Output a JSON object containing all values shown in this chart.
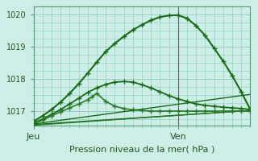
{
  "xlabel": "Pression niveau de la mer( hPa )",
  "bg_color": "#cceee6",
  "grid_color": "#88ccbb",
  "xlim": [
    0,
    48
  ],
  "ylim": [
    1016.55,
    1020.25
  ],
  "yticks": [
    1017,
    1018,
    1019,
    1020
  ],
  "xtick_positions": [
    0,
    32
  ],
  "xtick_labels": [
    "Jeu",
    "Ven"
  ],
  "vline_x": 32,
  "series": [
    {
      "x": [
        0,
        2,
        4,
        6,
        8,
        10,
        12,
        14,
        16,
        18,
        20,
        22,
        24,
        26,
        28,
        30,
        32,
        34,
        36,
        38,
        40,
        42,
        44,
        46,
        48
      ],
      "y": [
        1016.68,
        1016.85,
        1017.05,
        1017.28,
        1017.55,
        1017.85,
        1018.18,
        1018.52,
        1018.85,
        1019.1,
        1019.32,
        1019.52,
        1019.68,
        1019.82,
        1019.92,
        1019.97,
        1019.98,
        1019.88,
        1019.65,
        1019.35,
        1018.95,
        1018.55,
        1018.1,
        1017.6,
        1017.05
      ],
      "marker": "+",
      "lw": 1.5,
      "ms": 5,
      "color": "#1a6a1a"
    },
    {
      "x": [
        0,
        2,
        4,
        6,
        8,
        10,
        12,
        14,
        16,
        18,
        20,
        22,
        24,
        26,
        28,
        30,
        32,
        34,
        36,
        38,
        40,
        42,
        44,
        46,
        48
      ],
      "y": [
        1016.63,
        1016.75,
        1016.9,
        1017.05,
        1017.22,
        1017.4,
        1017.58,
        1017.72,
        1017.83,
        1017.9,
        1017.92,
        1017.9,
        1017.82,
        1017.72,
        1017.6,
        1017.48,
        1017.38,
        1017.3,
        1017.22,
        1017.18,
        1017.15,
        1017.12,
        1017.1,
        1017.08,
        1017.05
      ],
      "marker": "+",
      "lw": 1.3,
      "ms": 4,
      "color": "#1a6a1a"
    },
    {
      "x": [
        0,
        2,
        4,
        6,
        8,
        10,
        12,
        13,
        14,
        16,
        18,
        20,
        22,
        24,
        26,
        28,
        30,
        32,
        34,
        36,
        38,
        40,
        42,
        44,
        46,
        48
      ],
      "y": [
        1016.61,
        1016.72,
        1016.85,
        1016.98,
        1017.1,
        1017.22,
        1017.35,
        1017.45,
        1017.55,
        1017.3,
        1017.15,
        1017.08,
        1017.04,
        1017.02,
        1017.0,
        1017.0,
        1017.0,
        1017.0,
        1017.0,
        1017.0,
        1017.0,
        1017.0,
        1017.0,
        1017.0,
        1017.0,
        1017.0
      ],
      "marker": "+",
      "lw": 1.2,
      "ms": 4,
      "color": "#2a7a2a"
    },
    {
      "x": [
        0,
        48
      ],
      "y": [
        1016.6,
        1017.52
      ],
      "marker": null,
      "lw": 1.0,
      "ms": 0,
      "color": "#1a6a1a"
    },
    {
      "x": [
        0,
        48
      ],
      "y": [
        1016.58,
        1017.02
      ],
      "marker": null,
      "lw": 1.0,
      "ms": 0,
      "color": "#1a6a1a"
    },
    {
      "x": [
        0,
        48
      ],
      "y": [
        1016.56,
        1017.02
      ],
      "marker": null,
      "lw": 0.9,
      "ms": 0,
      "color": "#2a7a2a"
    }
  ]
}
